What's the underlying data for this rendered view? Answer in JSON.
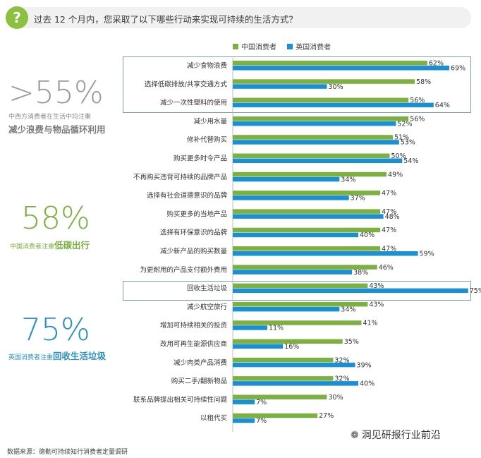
{
  "header": {
    "question_icon": "?",
    "question": "过去 12 个月内，您采取了以下哪些行动来实现可持续的生活方式？"
  },
  "stats": {
    "western": {
      "big": ">55%",
      "sub": "中西方消费者在生活中均注重",
      "bold": "减少浪费与物品循环利用"
    },
    "china": {
      "big": "58%",
      "sub": "中国消费者注重",
      "bold": "低碳出行"
    },
    "uk": {
      "big": "75%",
      "sub": "英国消费者注重",
      "bold": "回收生活垃圾"
    }
  },
  "source": "数据来源：德勤可持续知行消费者定量调研",
  "watermark": {
    "icon": "wechat-icon",
    "text": "洞见研报行业前沿"
  },
  "colors": {
    "china": "#7cb142",
    "uk": "#1a8fd2",
    "accent": "#8cc03f"
  },
  "chart_data": {
    "type": "bar",
    "orientation": "horizontal",
    "title": "过去 12 个月内，您采取了以下哪些行动来实现可持续的生活方式？",
    "unit": "%",
    "categories": [
      "减少食物浪费",
      "选择低碳排放/共享交通方式",
      "减少一次性塑料的使用",
      "减少用水量",
      "修补代替购买",
      "购买更多时令产品",
      "不再购买违背可持续的品牌产品",
      "选择有社会道德意识的品牌",
      "购买更多的当地产品",
      "选择有环保意识的品牌",
      "减少新产品的购买数量",
      "为更耐用的产品支付额外费用",
      "回收生活垃圾",
      "减少航空旅行",
      "增加可持续相关的投资",
      "改用可再生能源供应商",
      "减少肉类产品消费",
      "购买二手/翻新物品",
      "联系品牌提出相关可持续性问题",
      "以租代买"
    ],
    "series": [
      {
        "name": "中国消费者",
        "values": [
          62,
          58,
          56,
          56,
          51,
          50,
          49,
          47,
          47,
          47,
          47,
          46,
          43,
          43,
          41,
          35,
          32,
          32,
          30,
          27
        ]
      },
      {
        "name": "英国消费者",
        "values": [
          69,
          30,
          64,
          52,
          53,
          54,
          34,
          37,
          48,
          40,
          59,
          38,
          75,
          34,
          11,
          16,
          39,
          40,
          7,
          7
        ]
      }
    ],
    "legend": [
      "中国消费者",
      "英国消费者"
    ],
    "legend_position": "top",
    "xlim": [
      0,
      80
    ],
    "highlighted_groups": [
      [
        0,
        2
      ],
      [
        12,
        12
      ]
    ]
  }
}
